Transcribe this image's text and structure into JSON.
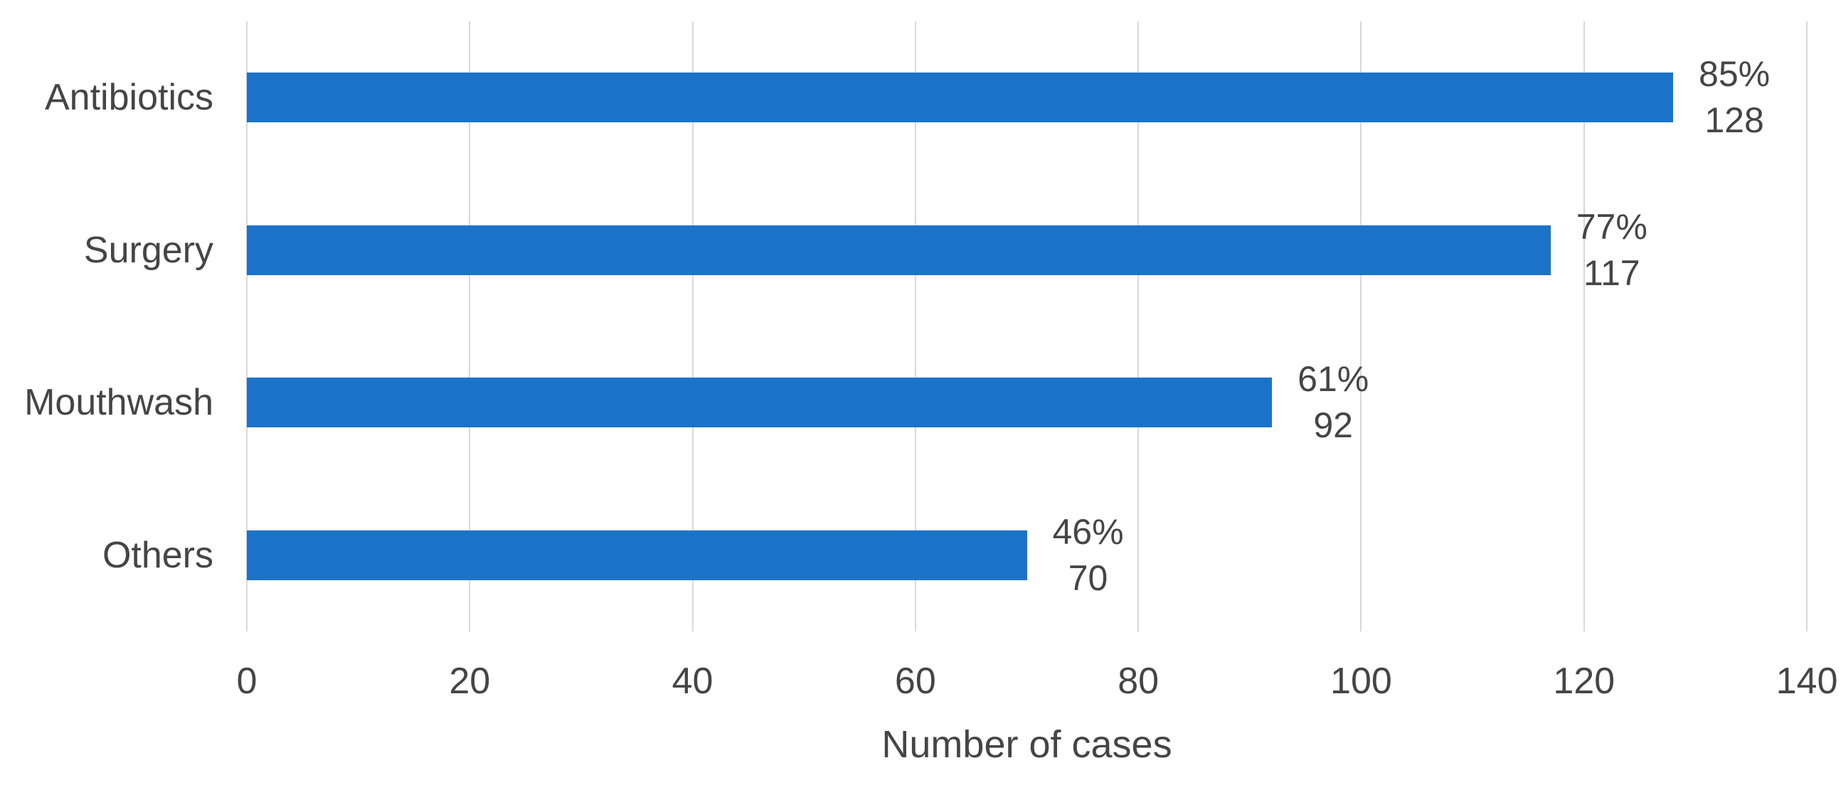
{
  "chart_data": {
    "type": "bar",
    "orientation": "horizontal",
    "title": "",
    "xlabel": "Number of cases",
    "ylabel": "",
    "categories": [
      "Antibiotics",
      "Surgery",
      "Mouthwash",
      "Others"
    ],
    "values": [
      128,
      117,
      92,
      70
    ],
    "percent_labels": [
      "85%",
      "77%",
      "61%",
      "46%"
    ],
    "xlim": [
      0,
      140
    ],
    "x_ticks": [
      0,
      20,
      40,
      60,
      80,
      100,
      120,
      140
    ],
    "grid": true,
    "legend": false,
    "colors": {
      "bar": "#1B73C9",
      "text": "#454545",
      "gridline": "#D9D9D9",
      "background": "#FFFFFF"
    }
  }
}
